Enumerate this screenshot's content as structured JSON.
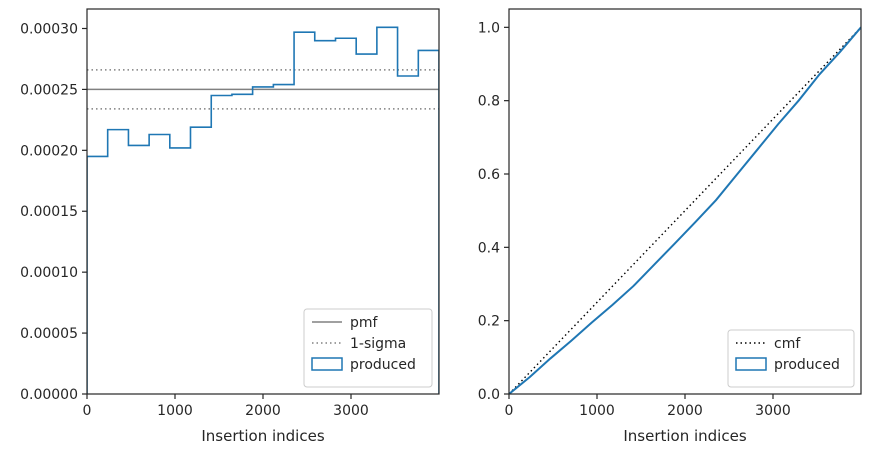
{
  "chart_data": [
    {
      "type": "line",
      "xlabel": "Insertion indices",
      "ylabel": "",
      "xlim": [
        0,
        4000
      ],
      "ylim": [
        0,
        0.000316
      ],
      "x_ticks": [
        0,
        1000,
        2000,
        3000
      ],
      "x_tick_labels": [
        "0",
        "1000",
        "2000",
        "3000"
      ],
      "y_ticks": [
        0,
        5e-05,
        0.0001,
        0.00015,
        0.0002,
        0.00025,
        0.0003
      ],
      "y_tick_labels": [
        "0.00000",
        "0.00005",
        "0.00010",
        "0.00015",
        "0.00020",
        "0.00025",
        "0.00030"
      ],
      "grid": false,
      "legend_position": "lower-right",
      "series": [
        {
          "name": "pmf",
          "style": "solid",
          "color": "#808080",
          "hlines": [
            0.00025
          ]
        },
        {
          "name": "1-sigma",
          "style": "dotted",
          "color": "#808080",
          "hlines": [
            0.000234,
            0.000266
          ]
        },
        {
          "name": "produced",
          "style": "step",
          "color": "#1f77b4",
          "bin_edges": [
            0,
            235,
            471,
            706,
            941,
            1176,
            1412,
            1647,
            1882,
            2118,
            2353,
            2588,
            2824,
            3059,
            3294,
            3529,
            3765,
            4000
          ],
          "values": [
            0.000195,
            0.000217,
            0.000204,
            0.000213,
            0.000202,
            0.000219,
            0.000245,
            0.000246,
            0.000252,
            0.000254,
            0.000297,
            0.00029,
            0.000292,
            0.000279,
            0.000301,
            0.000261,
            0.000282
          ]
        }
      ]
    },
    {
      "type": "line",
      "xlabel": "Insertion indices",
      "ylabel": "",
      "xlim": [
        0,
        4000
      ],
      "ylim": [
        0,
        1.05
      ],
      "x_ticks": [
        0,
        1000,
        2000,
        3000
      ],
      "x_tick_labels": [
        "0",
        "1000",
        "2000",
        "3000"
      ],
      "y_ticks": [
        0,
        0.2,
        0.4,
        0.6,
        0.8,
        1.0
      ],
      "y_tick_labels": [
        "0.0",
        "0.2",
        "0.4",
        "0.6",
        "0.8",
        "1.0"
      ],
      "grid": false,
      "legend_position": "lower-right",
      "series": [
        {
          "name": "cmf",
          "style": "dotted",
          "color": "#000000",
          "x": [
            0,
            4000
          ],
          "y": [
            0,
            1
          ]
        },
        {
          "name": "produced",
          "style": "step",
          "color": "#1f77b4",
          "x": [
            0,
            235,
            471,
            706,
            941,
            1176,
            1412,
            1647,
            1882,
            2118,
            2353,
            2588,
            2824,
            3059,
            3294,
            3529,
            3765,
            4000
          ],
          "y": [
            0,
            0.046,
            0.097,
            0.145,
            0.195,
            0.243,
            0.294,
            0.352,
            0.41,
            0.469,
            0.529,
            0.598,
            0.667,
            0.736,
            0.801,
            0.872,
            0.934,
            1.0
          ]
        }
      ]
    }
  ]
}
